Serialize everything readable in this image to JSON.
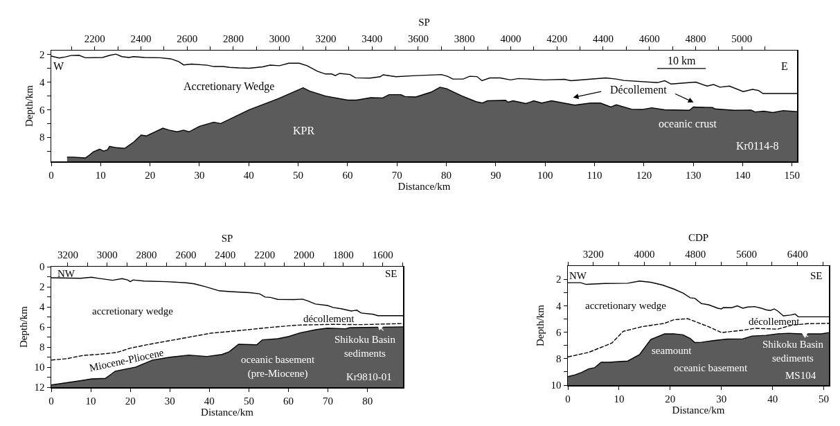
{
  "chart_data": [
    {
      "type": "area",
      "xlabel": "Distance/km",
      "ylabel": "Depth/km",
      "x2label": "SP",
      "xlim": [
        0,
        151
      ],
      "xticks": [
        0,
        10,
        20,
        30,
        40,
        50,
        60,
        70,
        80,
        90,
        100,
        110,
        120,
        130,
        140,
        150
      ],
      "ylim": [
        9.75,
        1.7
      ],
      "yticks": [
        2,
        {
          "value": 3,
          "label": null
        },
        4,
        {
          "value": 5,
          "label": null
        },
        6,
        {
          "value": 7,
          "label": null
        },
        8,
        {
          "value": 9,
          "label": null
        }
      ],
      "x2lim": [
        2012,
        5239
      ],
      "x2ticks": [
        {
          "value": 2100,
          "label": null
        },
        2200,
        {
          "value": 2300,
          "label": null
        },
        2400,
        {
          "value": 2500,
          "label": null
        },
        2600,
        {
          "value": 2700,
          "label": null
        },
        2800,
        {
          "value": 2900,
          "label": null
        },
        3000,
        {
          "value": 3100,
          "label": null
        },
        3200,
        {
          "value": 3300,
          "label": null
        },
        3400,
        {
          "value": 3500,
          "label": null
        },
        3600,
        {
          "value": 3700,
          "label": null
        },
        3800,
        {
          "value": 3900,
          "label": null
        },
        4000,
        {
          "value": 4100,
          "label": null
        },
        4200,
        {
          "value": 4300,
          "label": null
        },
        4400,
        {
          "value": 4500,
          "label": null
        },
        4600,
        {
          "value": 4700,
          "label": null
        },
        4800,
        {
          "value": 4900,
          "label": null
        },
        5000,
        {
          "value": 5100,
          "label": null
        }
      ],
      "grid": false,
      "series": [
        {
          "type": "line",
          "color": "#000000",
          "line_style": "solid",
          "x": [
            0,
            1.6,
            2.9,
            4.0,
            5.6,
            6.9,
            10.4,
            11.9,
            13.1,
            14.3,
            15.7,
            16.7,
            18.9,
            22.0,
            24.2,
            25.8,
            26.8,
            28.4,
            31.6,
            32.9,
            34.8,
            36.1,
            38.0,
            40.1,
            42.8,
            44.3,
            46.2,
            48.1,
            50.2,
            51.8,
            53.9,
            55.5,
            56.8,
            57.5,
            58.4,
            60.5,
            61.6,
            64.5,
            66.6,
            67.2,
            69.8,
            73.2,
            79.0,
            80.3,
            81.3,
            83.4,
            84.7,
            86.2,
            87.2,
            88.8,
            90.9,
            93.0,
            94.6,
            99.8,
            103.9,
            105.2,
            112.3,
            114.4,
            115.9,
            122.7,
            124.2,
            125.5,
            130.5,
            132.8,
            134.1,
            135.4,
            137.3,
            140.1,
            142.0,
            143.2,
            144.1,
            151
          ],
          "values": [
            2.1,
            2.24,
            2.16,
            2.06,
            2.04,
            2.22,
            2.2,
            2.04,
            1.96,
            2.14,
            2.2,
            2.14,
            2.2,
            2.22,
            2.3,
            2.5,
            2.74,
            2.68,
            2.76,
            2.86,
            2.86,
            2.92,
            2.96,
            2.98,
            2.88,
            2.76,
            2.8,
            2.62,
            2.62,
            2.8,
            3.2,
            3.4,
            3.4,
            3.52,
            3.36,
            3.44,
            3.68,
            3.7,
            3.6,
            3.46,
            3.6,
            3.53,
            3.44,
            3.58,
            3.77,
            3.77,
            3.57,
            3.59,
            3.89,
            3.69,
            3.69,
            3.83,
            3.73,
            3.83,
            3.79,
            3.89,
            3.69,
            3.77,
            3.87,
            4.03,
            3.89,
            4.13,
            3.99,
            4.28,
            4.17,
            4.36,
            4.28,
            4.68,
            4.52,
            4.6,
            4.82,
            4.82
          ]
        },
        {
          "type": "area",
          "color": "#5b5b5b",
          "x": [
            3.2,
            4.5,
            6.9,
            7.7,
            8.5,
            9.8,
            10.6,
            11.4,
            11.8,
            13.3,
            14.9,
            16.7,
            18.2,
            19.3,
            21.0,
            22.6,
            23.9,
            25.5,
            26.8,
            27.9,
            30.0,
            32.9,
            34.3,
            40.1,
            45.9,
            51.0,
            52.3,
            55.5,
            60.0,
            61.8,
            64.7,
            67.1,
            68.4,
            70.8,
            71.6,
            73.8,
            76.9,
            78.7,
            80.0,
            83.1,
            86.0,
            87.3,
            88.3,
            92.0,
            92.5,
            93.5,
            96.1,
            97.7,
            99.3,
            101.3,
            106.0,
            109.2,
            111.2,
            113.3,
            114.4,
            117.5,
            119.6,
            121.6,
            124.2,
            129.2,
            130.0,
            133.9,
            134.4,
            138.3,
            141.7,
            142.5,
            144.3,
            146.1,
            148.2,
            151
          ],
          "values": [
            9.44,
            9.44,
            9.5,
            9.3,
            9.06,
            8.86,
            9.0,
            8.9,
            8.66,
            8.76,
            8.8,
            8.34,
            7.84,
            7.9,
            7.6,
            7.34,
            7.48,
            7.6,
            7.48,
            7.6,
            7.2,
            6.9,
            7.0,
            6.0,
            5.2,
            4.4,
            4.64,
            5.0,
            5.3,
            5.3,
            5.12,
            5.14,
            4.9,
            4.9,
            5.04,
            5.07,
            4.72,
            4.36,
            4.46,
            4.99,
            5.41,
            5.51,
            5.35,
            5.31,
            5.45,
            5.35,
            5.55,
            5.35,
            5.51,
            5.35,
            5.66,
            5.51,
            5.51,
            5.8,
            5.64,
            5.96,
            5.98,
            5.86,
            6.0,
            6.04,
            5.8,
            5.84,
            5.94,
            6.04,
            6.02,
            6.16,
            6.1,
            6.2,
            6.06,
            6.14
          ]
        }
      ],
      "annotations": [
        "W",
        "E",
        "Accretionary Wedge",
        "Décollement",
        "10 km",
        "KPR",
        "oceanic crust",
        "Kr0114-8"
      ]
    },
    {
      "type": "area",
      "xlabel": "Distance/km",
      "ylabel": "Depth/km",
      "x2label": "SP",
      "xlim": [
        0,
        89
      ],
      "xticks": [
        0,
        10,
        20,
        30,
        40,
        50,
        60,
        70,
        80
      ],
      "ylim": [
        12,
        0
      ],
      "yticks": [
        0,
        {
          "value": 1,
          "label": null
        },
        2,
        {
          "value": 3,
          "label": null
        },
        4,
        {
          "value": 5,
          "label": null
        },
        6,
        {
          "value": 7,
          "label": null
        },
        8,
        {
          "value": 9,
          "label": null
        },
        10,
        {
          "value": 11,
          "label": null
        },
        12
      ],
      "x2lim": [
        3284,
        1497
      ],
      "x2ticks": [
        3200,
        {
          "value": 3100,
          "label": null
        },
        3000,
        {
          "value": 2900,
          "label": null
        },
        2800,
        {
          "value": 2700,
          "label": null
        },
        2600,
        {
          "value": 2500,
          "label": null
        },
        2400,
        {
          "value": 2300,
          "label": null
        },
        2200,
        {
          "value": 2100,
          "label": null
        },
        2000,
        {
          "value": 1900,
          "label": null
        },
        1800,
        {
          "value": 1700,
          "label": null
        },
        1600,
        {
          "value": 1500,
          "label": null
        }
      ],
      "grid": false,
      "series": [
        {
          "type": "line",
          "color": "#000000",
          "line_style": "solid",
          "x": [
            0,
            7.4,
            10.2,
            12.0,
            15.5,
            17.9,
            19.3,
            20.0,
            20.7,
            23.5,
            29.2,
            34.1,
            36.2,
            39.0,
            42.5,
            45.3,
            50.2,
            52.7,
            54.1,
            55.5,
            57.3,
            61.5,
            63.6,
            65.0,
            66.8,
            69.9,
            71.3,
            73.4,
            75.9,
            77.3,
            78.4,
            81.5,
            82.6,
            89
          ],
          "values": [
            1.1,
            1.16,
            1.05,
            1.16,
            1.35,
            1.19,
            1.32,
            1.49,
            1.32,
            1.43,
            1.49,
            1.6,
            1.71,
            1.99,
            2.4,
            2.48,
            2.59,
            2.7,
            3.03,
            3.06,
            3.26,
            3.28,
            3.23,
            3.42,
            3.72,
            3.86,
            4.06,
            4.19,
            4.41,
            4.33,
            4.61,
            4.74,
            4.88,
            4.88
          ]
        },
        {
          "type": "line",
          "color": "#000000",
          "line_style": "dashed",
          "x": [
            0,
            3.9,
            8.1,
            11.6,
            16.5,
            20.0,
            24.9,
            32.7,
            40.4,
            48.1,
            55.5,
            62.2,
            71.3,
            78.4,
            89
          ],
          "values": [
            9.3,
            9.16,
            8.83,
            8.74,
            8.55,
            8.11,
            7.72,
            7.17,
            6.62,
            6.34,
            6.04,
            5.82,
            5.74,
            5.77,
            5.66
          ]
        },
        {
          "type": "area",
          "color": "#5b5b5b",
          "x": [
            0,
            8.1,
            10.2,
            13.7,
            16.2,
            21.4,
            25.6,
            29.9,
            34.8,
            39.4,
            43.2,
            45.0,
            47.4,
            52.0,
            53.4,
            57.3,
            60.1,
            62.9,
            67.1,
            69.9,
            74.5,
            75.5,
            89
          ],
          "values": [
            11.78,
            11.31,
            11.17,
            11.12,
            10.4,
            9.99,
            9.3,
            9.02,
            8.8,
            8.94,
            8.74,
            8.47,
            7.72,
            7.78,
            7.28,
            7.17,
            6.95,
            6.59,
            6.26,
            6.12,
            6.18,
            6.07,
            5.99
          ]
        }
      ],
      "annotations": [
        "NW",
        "SE",
        "accretionary wedge",
        "décollement",
        "Miocene-Pliocene",
        "oceanic basement\n(pre-Miocene)",
        "Shikoku Basin\nsediments",
        "Kr9810-01"
      ]
    },
    {
      "type": "area",
      "xlabel": "Distance/km",
      "ylabel": "Depth/km",
      "x2label": "CDP",
      "xlim": [
        0,
        51
      ],
      "xticks": [
        0,
        10,
        20,
        30,
        40,
        50
      ],
      "ylim": [
        10,
        1
      ],
      "yticks": [
        2,
        {
          "value": 3,
          "label": null
        },
        4,
        {
          "value": 5,
          "label": null
        },
        6,
        {
          "value": 7,
          "label": null
        },
        8,
        {
          "value": 9,
          "label": null
        },
        10
      ],
      "x2lim": [
        2800,
        6890
      ],
      "x2ticks": [
        {
          "value": 2800,
          "label": null
        },
        3200,
        {
          "value": 3600,
          "label": null
        },
        4000,
        {
          "value": 4400,
          "label": null
        },
        4800,
        {
          "value": 5200,
          "label": null
        },
        5600,
        {
          "value": 6000,
          "label": null
        },
        6400,
        {
          "value": 6800,
          "label": null
        }
      ],
      "grid": false,
      "series": [
        {
          "type": "line",
          "color": "#000000",
          "line_style": "solid",
          "x": [
            0,
            2.5,
            3.6,
            7.2,
            11.7,
            14.0,
            16.2,
            18.5,
            20.7,
            22.5,
            23.9,
            24.8,
            26.1,
            27.5,
            29.3,
            30.0,
            30.4,
            32.0,
            33.1,
            34.2,
            35.1,
            36.5,
            37.8,
            38.7,
            39.6,
            40.3,
            41.0,
            42.1,
            43.5,
            44.4,
            45.0,
            51.0
          ],
          "values": [
            2.26,
            2.26,
            2.39,
            2.32,
            2.3,
            2.14,
            2.23,
            2.44,
            2.74,
            3.05,
            3.4,
            3.44,
            3.84,
            3.93,
            4.19,
            4.24,
            4.14,
            4.15,
            4.01,
            4.19,
            4.1,
            4.07,
            4.19,
            4.31,
            4.36,
            4.24,
            4.4,
            4.77,
            4.71,
            4.63,
            4.84,
            4.84
          ]
        },
        {
          "type": "line",
          "color": "#000000",
          "line_style": "dashed",
          "x": [
            0,
            4.1,
            8.6,
            10.8,
            14.4,
            18.9,
            20.7,
            23.4,
            25.2,
            27.5,
            30.0,
            34.2,
            36.5,
            41.0,
            43.7,
            46.8,
            51.0
          ],
          "values": [
            7.87,
            7.52,
            6.82,
            5.94,
            5.59,
            5.33,
            5.06,
            4.98,
            5.24,
            5.59,
            6.03,
            5.85,
            5.71,
            5.77,
            5.47,
            5.36,
            5.33
          ]
        },
        {
          "type": "area",
          "color": "#5b5b5b",
          "x": [
            0,
            1.4,
            2.7,
            4.1,
            5.2,
            6.5,
            8.1,
            9.9,
            11.7,
            14.0,
            16.2,
            18.9,
            20.7,
            22.5,
            23.9,
            24.8,
            26.1,
            28.4,
            31.1,
            34.2,
            36.0,
            38.7,
            41.0,
            43.2,
            45.5,
            49.5,
            51.0
          ],
          "values": [
            9.36,
            9.22,
            9.04,
            8.76,
            8.69,
            8.27,
            8.27,
            8.22,
            8.18,
            7.69,
            6.55,
            6.13,
            6.12,
            6.2,
            6.47,
            6.78,
            6.76,
            6.64,
            6.52,
            6.5,
            6.29,
            6.24,
            6.12,
            6.08,
            6.13,
            6.13,
            6.03
          ]
        }
      ],
      "annotations": [
        "NW",
        "SE",
        "accretionary wedge",
        "décollement",
        "seamount",
        "oceanic basement",
        "Shikoku Basin\nsediments",
        "MS104"
      ]
    }
  ]
}
